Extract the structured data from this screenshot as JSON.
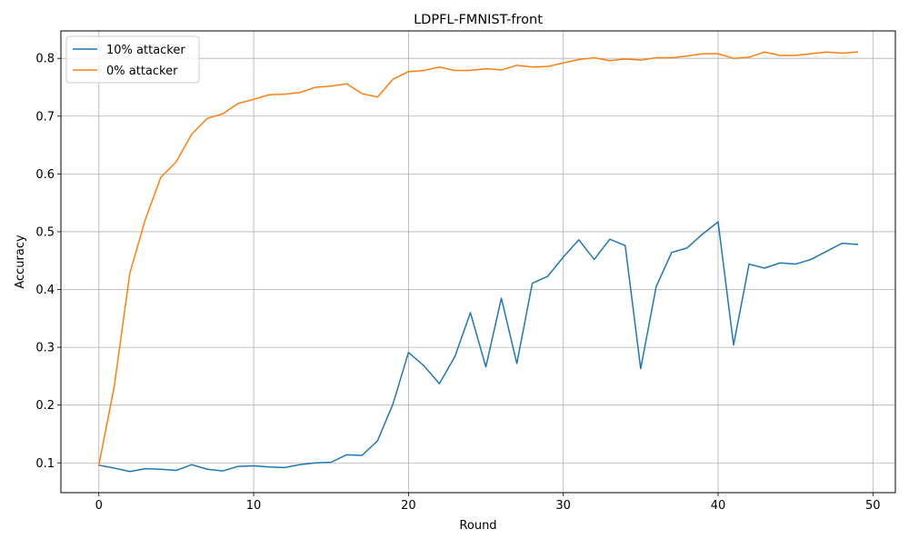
{
  "chart_data": {
    "type": "line",
    "title": "LDPFL-FMNIST-front",
    "xlabel": "Round",
    "ylabel": "Accuracy",
    "xlim": [
      -2.45,
      51.45
    ],
    "ylim": [
      0.0485,
      0.8475
    ],
    "x_ticks": [
      0,
      10,
      20,
      30,
      40,
      50
    ],
    "x_tick_labels": [
      "0",
      "10",
      "20",
      "30",
      "40",
      "50"
    ],
    "y_ticks": [
      0.1,
      0.2,
      0.3,
      0.4,
      0.5,
      0.6,
      0.7,
      0.8
    ],
    "y_tick_labels": [
      "0.1",
      "0.2",
      "0.3",
      "0.4",
      "0.5",
      "0.6",
      "0.7",
      "0.8"
    ],
    "grid": true,
    "legend_position": "top-left",
    "x": [
      0,
      1,
      2,
      3,
      4,
      5,
      6,
      7,
      8,
      9,
      10,
      11,
      12,
      13,
      14,
      15,
      16,
      17,
      18,
      19,
      20,
      21,
      22,
      23,
      24,
      25,
      26,
      27,
      28,
      29,
      30,
      31,
      32,
      33,
      34,
      35,
      36,
      37,
      38,
      39,
      40,
      41,
      42,
      43,
      44,
      45,
      46,
      47,
      48,
      49
    ],
    "series": [
      {
        "name": "10% attacker",
        "color": "#1f77b4",
        "values": [
          0.096,
          0.091,
          0.085,
          0.09,
          0.089,
          0.087,
          0.097,
          0.089,
          0.086,
          0.094,
          0.095,
          0.093,
          0.092,
          0.097,
          0.1,
          0.101,
          0.114,
          0.113,
          0.138,
          0.202,
          0.291,
          0.268,
          0.237,
          0.284,
          0.36,
          0.266,
          0.385,
          0.272,
          0.411,
          0.423,
          0.456,
          0.486,
          0.452,
          0.487,
          0.476,
          0.263,
          0.405,
          0.464,
          0.472,
          0.496,
          0.517,
          0.304,
          0.444,
          0.437,
          0.446,
          0.444,
          0.452,
          0.466,
          0.48,
          0.478
        ]
      },
      {
        "name": "0% attacker",
        "color": "#ff7f0e",
        "values": [
          0.096,
          0.233,
          0.428,
          0.521,
          0.594,
          0.621,
          0.669,
          0.696,
          0.704,
          0.722,
          0.729,
          0.737,
          0.738,
          0.741,
          0.75,
          0.752,
          0.756,
          0.739,
          0.733,
          0.764,
          0.777,
          0.779,
          0.785,
          0.779,
          0.779,
          0.782,
          0.78,
          0.788,
          0.785,
          0.786,
          0.792,
          0.798,
          0.801,
          0.796,
          0.799,
          0.797,
          0.801,
          0.801,
          0.804,
          0.808,
          0.808,
          0.8,
          0.802,
          0.811,
          0.805,
          0.805,
          0.808,
          0.811,
          0.809,
          0.811
        ]
      }
    ]
  }
}
